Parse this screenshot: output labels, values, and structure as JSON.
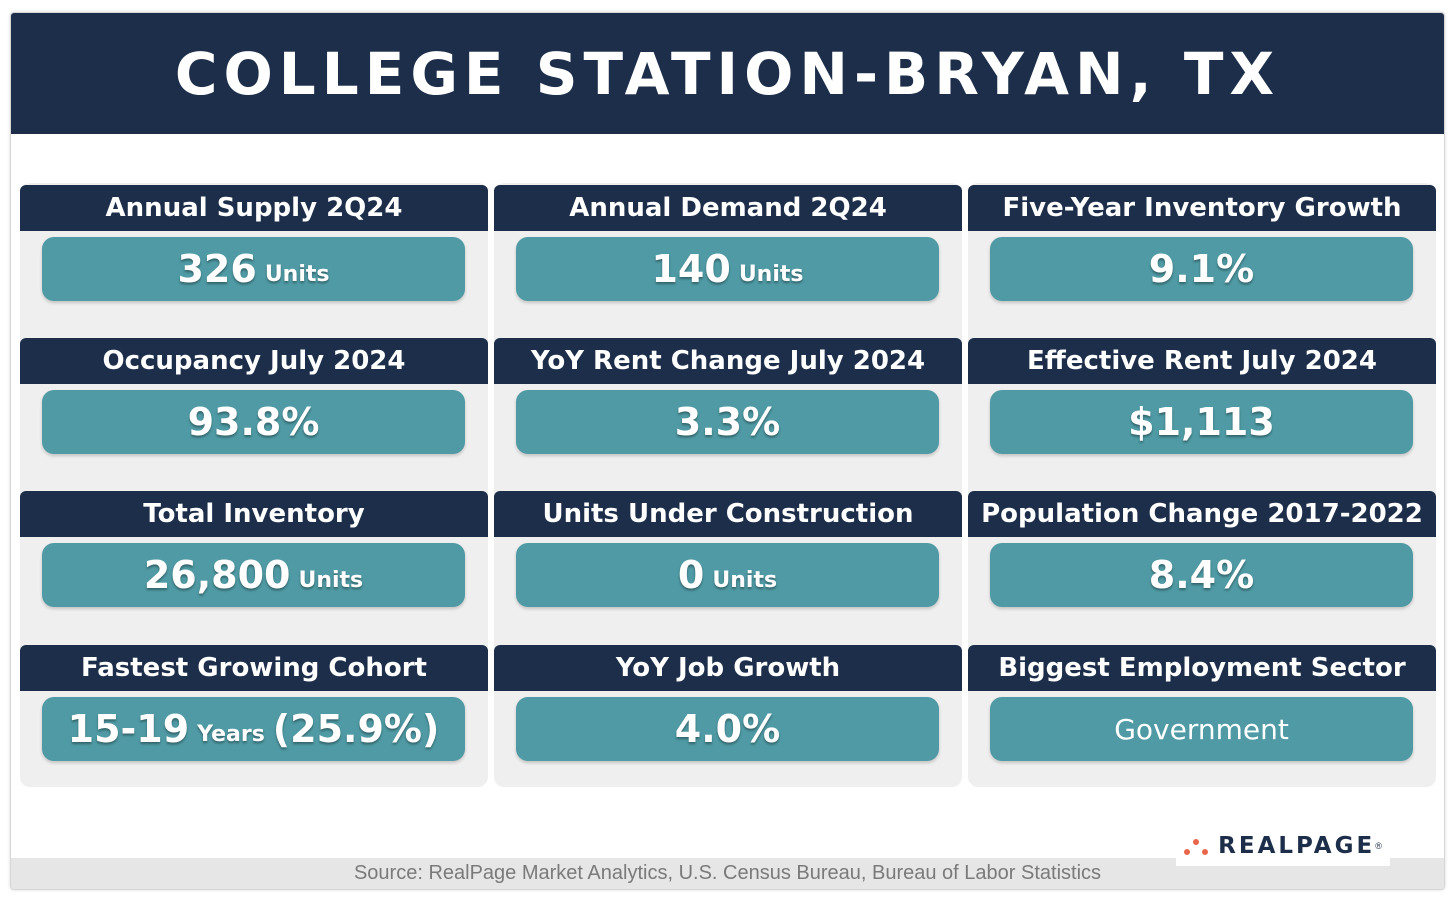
{
  "title": "COLLEGE STATION-BRYAN, TX",
  "columns": [
    [
      {
        "label": "Annual Supply 2Q24",
        "value": "326",
        "unit": "Units"
      },
      {
        "label": "Occupancy July 2024",
        "value": "93.8%"
      },
      {
        "label": "Total Inventory",
        "value": "26,800",
        "unit": "Units"
      },
      {
        "label": "Fastest Growing Cohort",
        "value": "15-19",
        "unit": "Years",
        "suffix": "(25.9%)"
      }
    ],
    [
      {
        "label": "Annual Demand 2Q24",
        "value": "140",
        "unit": "Units"
      },
      {
        "label": "YoY Rent Change July 2024",
        "value": "3.3%"
      },
      {
        "label": "Units Under Construction",
        "value": "0",
        "unit": "Units"
      },
      {
        "label": "YoY Job Growth",
        "value": "4.0%"
      }
    ],
    [
      {
        "label": "Five-Year Inventory Growth",
        "value": "9.1%"
      },
      {
        "label": "Effective Rent July 2024",
        "value": "$1,113"
      },
      {
        "label": "Population Change 2017-2022",
        "value": "8.4%"
      },
      {
        "label": "Biggest Employment Sector",
        "text": "Government"
      }
    ]
  ],
  "footer": {
    "source": "Source: RealPage Market Analytics, U.S. Census Bureau, Bureau of Labor Statistics",
    "logo_text": "REALPAGE",
    "logo_mark": "®"
  },
  "colors": {
    "navy": "#1c2e4a",
    "teal": "#4f9aa4",
    "panel": "#efefef",
    "logo_dot": "#e8664b"
  }
}
